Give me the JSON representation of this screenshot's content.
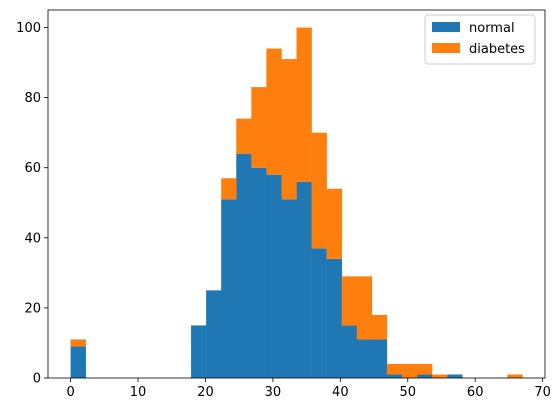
{
  "chart_data": {
    "type": "bar",
    "stacked": true,
    "histogram": true,
    "bin_start": 0,
    "bin_width": 2.2333,
    "x": [
      0.0,
      2.23,
      4.47,
      6.7,
      8.93,
      11.17,
      13.4,
      15.63,
      17.87,
      20.1,
      22.33,
      24.57,
      26.8,
      29.03,
      31.27,
      33.5,
      35.73,
      37.97,
      40.2,
      42.43,
      44.67,
      46.9,
      49.13,
      51.37,
      53.6,
      55.83,
      58.07,
      60.3,
      62.53,
      64.77
    ],
    "series": [
      {
        "name": "normal",
        "color": "#1f77b4",
        "values": [
          9,
          0,
          0,
          0,
          0,
          0,
          0,
          0,
          15,
          25,
          51,
          64,
          60,
          58,
          51,
          56,
          37,
          34,
          15,
          11,
          11,
          1,
          0,
          1,
          0,
          1,
          0,
          0,
          0,
          0
        ]
      },
      {
        "name": "diabetes",
        "color": "#ff7f0e",
        "values": [
          2,
          0,
          0,
          0,
          0,
          0,
          0,
          0,
          0,
          0,
          6,
          10,
          23,
          36,
          40,
          44,
          33,
          20,
          14,
          18,
          7,
          3,
          4,
          3,
          1,
          0,
          0,
          0,
          0,
          1
        ]
      }
    ],
    "xlim": [
      -3.35,
      70.35
    ],
    "ylim": [
      0,
      105
    ],
    "xticks": [
      0,
      10,
      20,
      30,
      40,
      50,
      60,
      70
    ],
    "yticks": [
      0,
      20,
      40,
      60,
      80,
      100
    ],
    "grid": false,
    "legend": "top-right"
  }
}
